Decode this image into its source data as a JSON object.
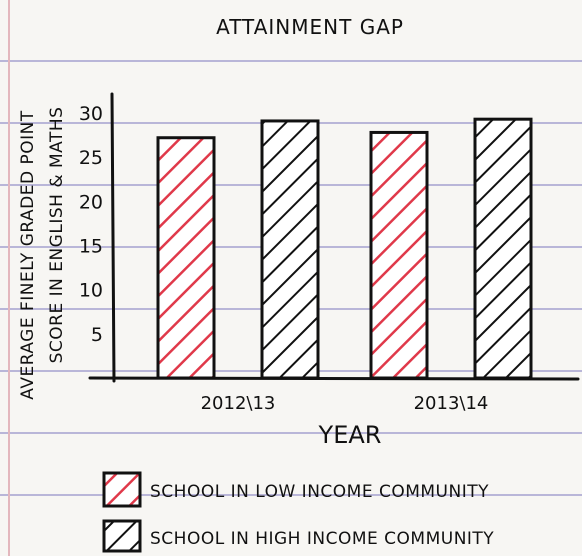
{
  "chart_data": {
    "type": "bar",
    "title": "ATTAINMENT GAP",
    "xlabel": "YEAR",
    "ylabel_lines": [
      "AVERAGE FINELY GRADED POINT",
      "SCORE IN ENGLISH & MATHS"
    ],
    "categories": [
      "2012\\13",
      "2013\\14"
    ],
    "yticks": [
      5,
      10,
      15,
      20,
      25,
      30
    ],
    "ylim": [
      0,
      32
    ],
    "grid": false,
    "legend_position": "bottom-left",
    "series": [
      {
        "name": "SCHOOL IN LOW INCOME COMMUNITY",
        "values": [
          27.2,
          27.8
        ],
        "color": "#e0394a",
        "pattern": "red-hatch"
      },
      {
        "name": "SCHOOL IN HIGH INCOME COMMUNITY",
        "values": [
          29.1,
          29.3
        ],
        "color": "#111111",
        "pattern": "black-hatch"
      }
    ]
  }
}
